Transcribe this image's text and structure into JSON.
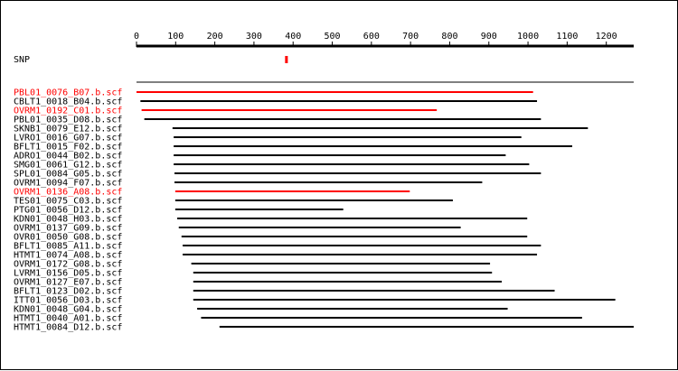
{
  "snp_label": "SNP",
  "scale": {
    "min": 0,
    "max": 1270,
    "ticks": [
      0,
      100,
      200,
      300,
      400,
      500,
      600,
      700,
      800,
      900,
      1000,
      1100,
      1200
    ]
  },
  "snp_position": 383,
  "highlight_color": "#ff0000",
  "default_color": "#000000",
  "reads": [
    {
      "name": "PBL01_0076_B07.b.scf",
      "start": 0,
      "end": 1013,
      "highlight": true
    },
    {
      "name": "CBLT1_0018_B04.b.scf",
      "start": 10,
      "end": 1023,
      "highlight": false
    },
    {
      "name": "OVRM1_0192_C01.b.scf",
      "start": 13,
      "end": 767,
      "highlight": true
    },
    {
      "name": "PBL01_0035_D08.b.scf",
      "start": 20,
      "end": 1033,
      "highlight": false
    },
    {
      "name": "SKNB1_0079_E12.b.scf",
      "start": 92,
      "end": 1153,
      "highlight": false
    },
    {
      "name": "LVRO1_0016_G07.b.scf",
      "start": 95,
      "end": 983,
      "highlight": false
    },
    {
      "name": "BFLT1_0015_F02.b.scf",
      "start": 95,
      "end": 1113,
      "highlight": false
    },
    {
      "name": "ADRO1_0044_B02.b.scf",
      "start": 95,
      "end": 943,
      "highlight": false
    },
    {
      "name": "SMG01_0061_G12.b.scf",
      "start": 95,
      "end": 1003,
      "highlight": false
    },
    {
      "name": "SPL01_0084_G05.b.scf",
      "start": 97,
      "end": 1033,
      "highlight": false
    },
    {
      "name": "OVRM1_0094_F07.b.scf",
      "start": 97,
      "end": 883,
      "highlight": false
    },
    {
      "name": "OVRM1_0136_A08.b.scf",
      "start": 99,
      "end": 698,
      "highlight": true
    },
    {
      "name": "TES01_0075_C03.b.scf",
      "start": 99,
      "end": 808,
      "highlight": false
    },
    {
      "name": "PTG01_0056_D12.b.scf",
      "start": 99,
      "end": 528,
      "highlight": false
    },
    {
      "name": "KDN01_0048_H03.b.scf",
      "start": 104,
      "end": 998,
      "highlight": false
    },
    {
      "name": "OVRM1_0137_G09.b.scf",
      "start": 108,
      "end": 828,
      "highlight": false
    },
    {
      "name": "OVR01_0050_G08.b.scf",
      "start": 115,
      "end": 998,
      "highlight": false
    },
    {
      "name": "BFLT1_0085_A11.b.scf",
      "start": 118,
      "end": 1033,
      "highlight": false
    },
    {
      "name": "HTMT1_0074_A08.b.scf",
      "start": 118,
      "end": 1023,
      "highlight": false
    },
    {
      "name": "OVRM1_0172_G08.b.scf",
      "start": 140,
      "end": 903,
      "highlight": false
    },
    {
      "name": "LVRM1_0156_D05.b.scf",
      "start": 145,
      "end": 908,
      "highlight": false
    },
    {
      "name": "OVRM1_0127_E07.b.scf",
      "start": 145,
      "end": 933,
      "highlight": false
    },
    {
      "name": "BFLT1_0123_D02.b.scf",
      "start": 145,
      "end": 1068,
      "highlight": false
    },
    {
      "name": "ITT01_0056_D03.b.scf",
      "start": 145,
      "end": 1223,
      "highlight": false
    },
    {
      "name": "KDN01_0048_G04.b.scf",
      "start": 155,
      "end": 948,
      "highlight": false
    },
    {
      "name": "HTMT1_0040_A01.b.scf",
      "start": 165,
      "end": 1138,
      "highlight": false
    },
    {
      "name": "HTMT1_0084_D12.b.scf",
      "start": 212,
      "end": 1270,
      "highlight": false
    }
  ]
}
